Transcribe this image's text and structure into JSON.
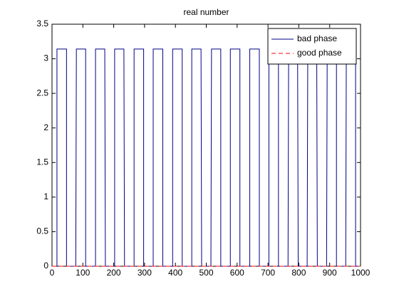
{
  "chart_data": {
    "type": "line",
    "title": "real number",
    "xlim": [
      0,
      1000
    ],
    "xticks": [
      0,
      100,
      200,
      300,
      400,
      500,
      600,
      700,
      800,
      900,
      1000
    ],
    "ylim": [
      0,
      3.5
    ],
    "yticks": [
      0,
      0.5,
      1,
      1.5,
      2,
      2.5,
      3,
      3.5
    ],
    "grid": false,
    "legend": "upper right",
    "series": [
      {
        "name": "bad phase",
        "color": "#00008b",
        "linestyle": "solid",
        "x": [
          0,
          16,
          16,
          47,
          47,
          77,
          78,
          79,
          109,
          109,
          141,
          141,
          171,
          172,
          173,
          203,
          203,
          233,
          234,
          235,
          266,
          266,
          297,
          297,
          328,
          328,
          359,
          359,
          391,
          391,
          422,
          422,
          453,
          453,
          483,
          484,
          485,
          515,
          516,
          517,
          547,
          547,
          578,
          578,
          609,
          609,
          641,
          641,
          672,
          672,
          703,
          703,
          734,
          734,
          765,
          766,
          767,
          796,
          797,
          798,
          827,
          828,
          829,
          858,
          859,
          860,
          890,
          891,
          892,
          922,
          922,
          952,
          953,
          954,
          984,
          984,
          1000
        ],
        "values": [
          0,
          0,
          3.1416,
          3.1416,
          0,
          0,
          1.5708,
          3.1416,
          3.1416,
          0,
          0,
          3.1416,
          3.1416,
          1.5708,
          0,
          0,
          3.1416,
          3.1416,
          1.5708,
          0,
          0,
          3.1416,
          3.1416,
          0,
          0,
          3.1416,
          3.1416,
          0,
          0,
          3.1416,
          3.1416,
          0,
          0,
          3.1416,
          3.1416,
          1.5708,
          0,
          0,
          1.5708,
          3.1416,
          3.1416,
          0,
          0,
          3.1416,
          3.1416,
          0,
          0,
          3.1416,
          3.1416,
          0,
          0,
          3.1416,
          3.1416,
          0,
          0,
          1.5708,
          3.1416,
          3.1416,
          1.5708,
          0,
          0,
          1.5708,
          3.1416,
          3.1416,
          1.5708,
          0,
          0,
          1.5708,
          3.1416,
          3.1416,
          0,
          0,
          1.5708,
          3.1416,
          3.1416,
          0,
          0
        ]
      },
      {
        "name": "good phase",
        "color": "#ff0000",
        "linestyle": "dashed",
        "x": [
          0,
          1000
        ],
        "values": [
          0,
          0
        ]
      }
    ]
  }
}
